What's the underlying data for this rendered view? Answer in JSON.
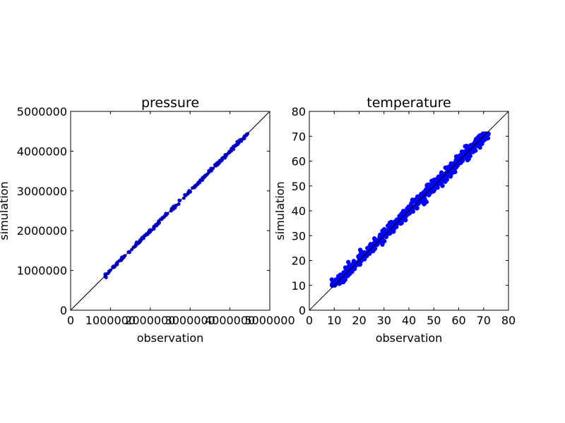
{
  "chart_data": [
    {
      "type": "scatter",
      "title": "pressure",
      "xlabel": "observation",
      "ylabel": "simulation",
      "xlim": [
        0,
        5000000
      ],
      "ylim": [
        0,
        5000000
      ],
      "xticks": [
        0,
        1000000,
        2000000,
        3000000,
        4000000,
        5000000
      ],
      "yticks": [
        0,
        1000000,
        2000000,
        3000000,
        4000000,
        5000000
      ],
      "xtick_labels": [
        "0",
        "1000000",
        "2000000",
        "3000000",
        "4000000",
        "5000000"
      ],
      "ytick_labels": [
        "0",
        "1000000",
        "2000000",
        "3000000",
        "4000000",
        "5000000"
      ],
      "reference_line": "y = x",
      "grid": false,
      "series": [
        {
          "color": "#0000ff",
          "x_range": [
            850000,
            4450000
          ],
          "y_range": [
            850000,
            4450000
          ],
          "spread": 20000
        }
      ]
    },
    {
      "type": "scatter",
      "title": "temperature",
      "xlabel": "observation",
      "ylabel": "simulation",
      "xlim": [
        0,
        80
      ],
      "ylim": [
        0,
        80
      ],
      "xticks": [
        0,
        10,
        20,
        30,
        40,
        50,
        60,
        70,
        80
      ],
      "yticks": [
        0,
        10,
        20,
        30,
        40,
        50,
        60,
        70,
        80
      ],
      "xtick_labels": [
        "0",
        "10",
        "20",
        "30",
        "40",
        "50",
        "60",
        "70",
        "80"
      ],
      "ytick_labels": [
        "0",
        "10",
        "20",
        "30",
        "40",
        "50",
        "60",
        "70",
        "80"
      ],
      "reference_line": "y = x",
      "grid": false,
      "series": [
        {
          "color": "#0000ff",
          "x_range": [
            9,
            72
          ],
          "y_range": [
            10,
            71
          ],
          "spread": 1.2
        }
      ]
    }
  ]
}
